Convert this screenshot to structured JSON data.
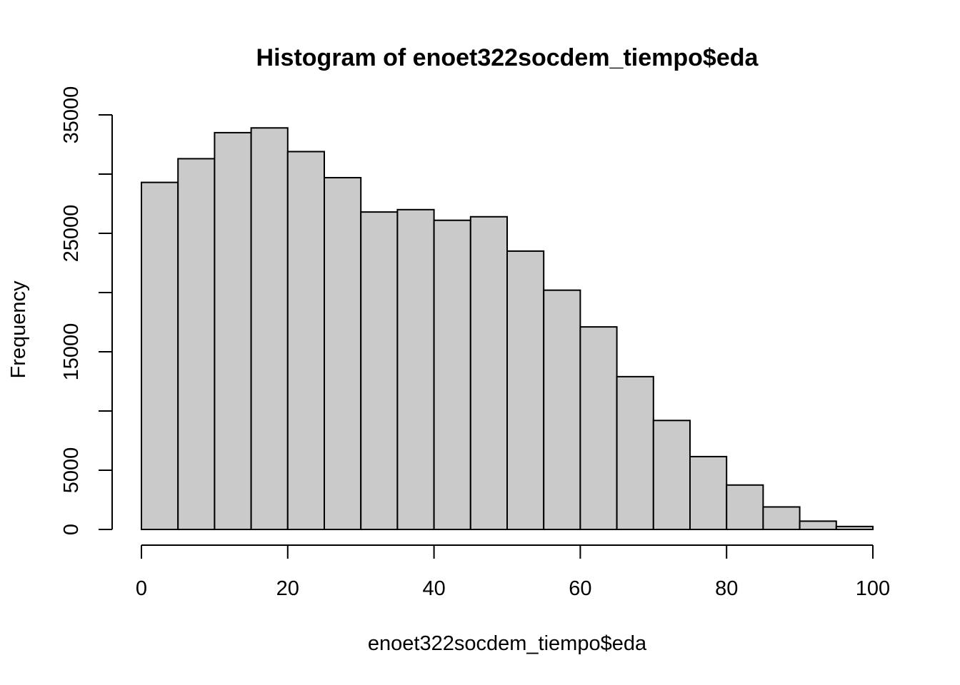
{
  "chart_data": {
    "type": "bar",
    "title": "Histogram of enoet322socdem_tiempo$eda",
    "xlabel": "enoet322socdem_tiempo$eda",
    "ylabel": "Frequency",
    "bin_edges": [
      0,
      5,
      10,
      15,
      20,
      25,
      30,
      35,
      40,
      45,
      50,
      55,
      60,
      65,
      70,
      75,
      80,
      85,
      90,
      95,
      100
    ],
    "values": [
      29300,
      31300,
      33500,
      33900,
      31900,
      29700,
      26800,
      27000,
      26100,
      26400,
      23500,
      20200,
      17100,
      12900,
      9200,
      6150,
      3750,
      1900,
      700,
      250
    ],
    "xlim": [
      0,
      100
    ],
    "ylim": [
      0,
      35000
    ],
    "x_ticks": [
      0,
      20,
      40,
      60,
      80,
      100
    ],
    "y_ticks": [
      0,
      5000,
      10000,
      15000,
      20000,
      25000,
      30000,
      35000
    ],
    "y_tick_labels_shown": [
      "0",
      "5000",
      "",
      "15000",
      "",
      "25000",
      "",
      "35000"
    ],
    "bar_color": "#cacaca",
    "edge_color": "#000000",
    "grid": false
  }
}
